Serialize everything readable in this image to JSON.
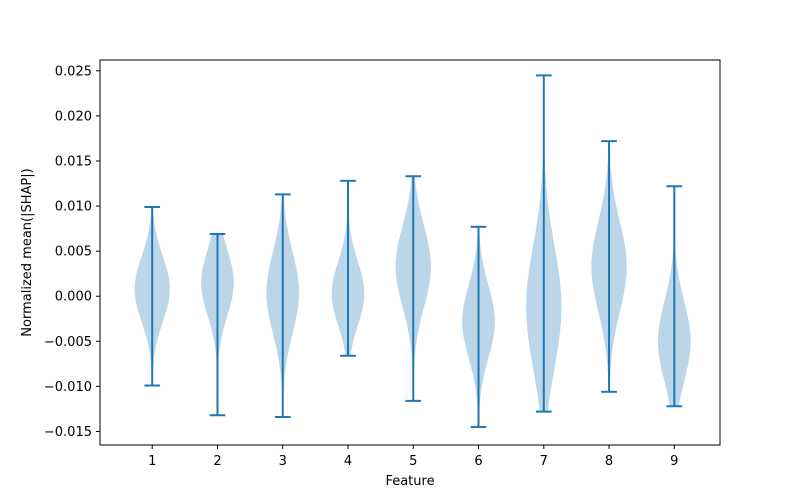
{
  "chart_data": {
    "type": "violin",
    "title": "",
    "xlabel": "Feature",
    "ylabel": "Normalized mean(|SHAP|)",
    "ylim": [
      -0.0165,
      0.0262
    ],
    "xlim": [
      0.2,
      9.7
    ],
    "yticks": [
      -0.015,
      -0.01,
      -0.005,
      0.0,
      0.005,
      0.01,
      0.015,
      0.02,
      0.025
    ],
    "ytick_labels": [
      "−0.015",
      "−0.010",
      "−0.005",
      "0.000",
      "0.005",
      "0.010",
      "0.015",
      "0.020",
      "0.025"
    ],
    "categories": [
      "1",
      "2",
      "3",
      "4",
      "5",
      "6",
      "7",
      "8",
      "9"
    ],
    "colors": {
      "body": "#1f77b4",
      "body_opacity": 0.3,
      "lines": "#1f77b4"
    },
    "grid": false,
    "violins": [
      {
        "feature": "1",
        "min": -0.0099,
        "max": 0.0099,
        "center": 0.0008,
        "width": 0.27
      },
      {
        "feature": "2",
        "min": -0.0132,
        "max": 0.0069,
        "center": 0.0015,
        "width": 0.25
      },
      {
        "feature": "3",
        "min": -0.0134,
        "max": 0.0113,
        "center": 0.0004,
        "width": 0.25
      },
      {
        "feature": "4",
        "min": -0.0066,
        "max": 0.0128,
        "center": 0.0003,
        "width": 0.25
      },
      {
        "feature": "5",
        "min": -0.0116,
        "max": 0.0133,
        "center": 0.0033,
        "width": 0.27
      },
      {
        "feature": "6",
        "min": -0.0145,
        "max": 0.0077,
        "center": -0.0028,
        "width": 0.25
      },
      {
        "feature": "7",
        "min": -0.0128,
        "max": 0.0245,
        "center": -0.0012,
        "width": 0.27
      },
      {
        "feature": "8",
        "min": -0.0106,
        "max": 0.0172,
        "center": 0.0033,
        "width": 0.27
      },
      {
        "feature": "9",
        "min": -0.0122,
        "max": 0.0122,
        "center": -0.005,
        "width": 0.25
      }
    ]
  }
}
